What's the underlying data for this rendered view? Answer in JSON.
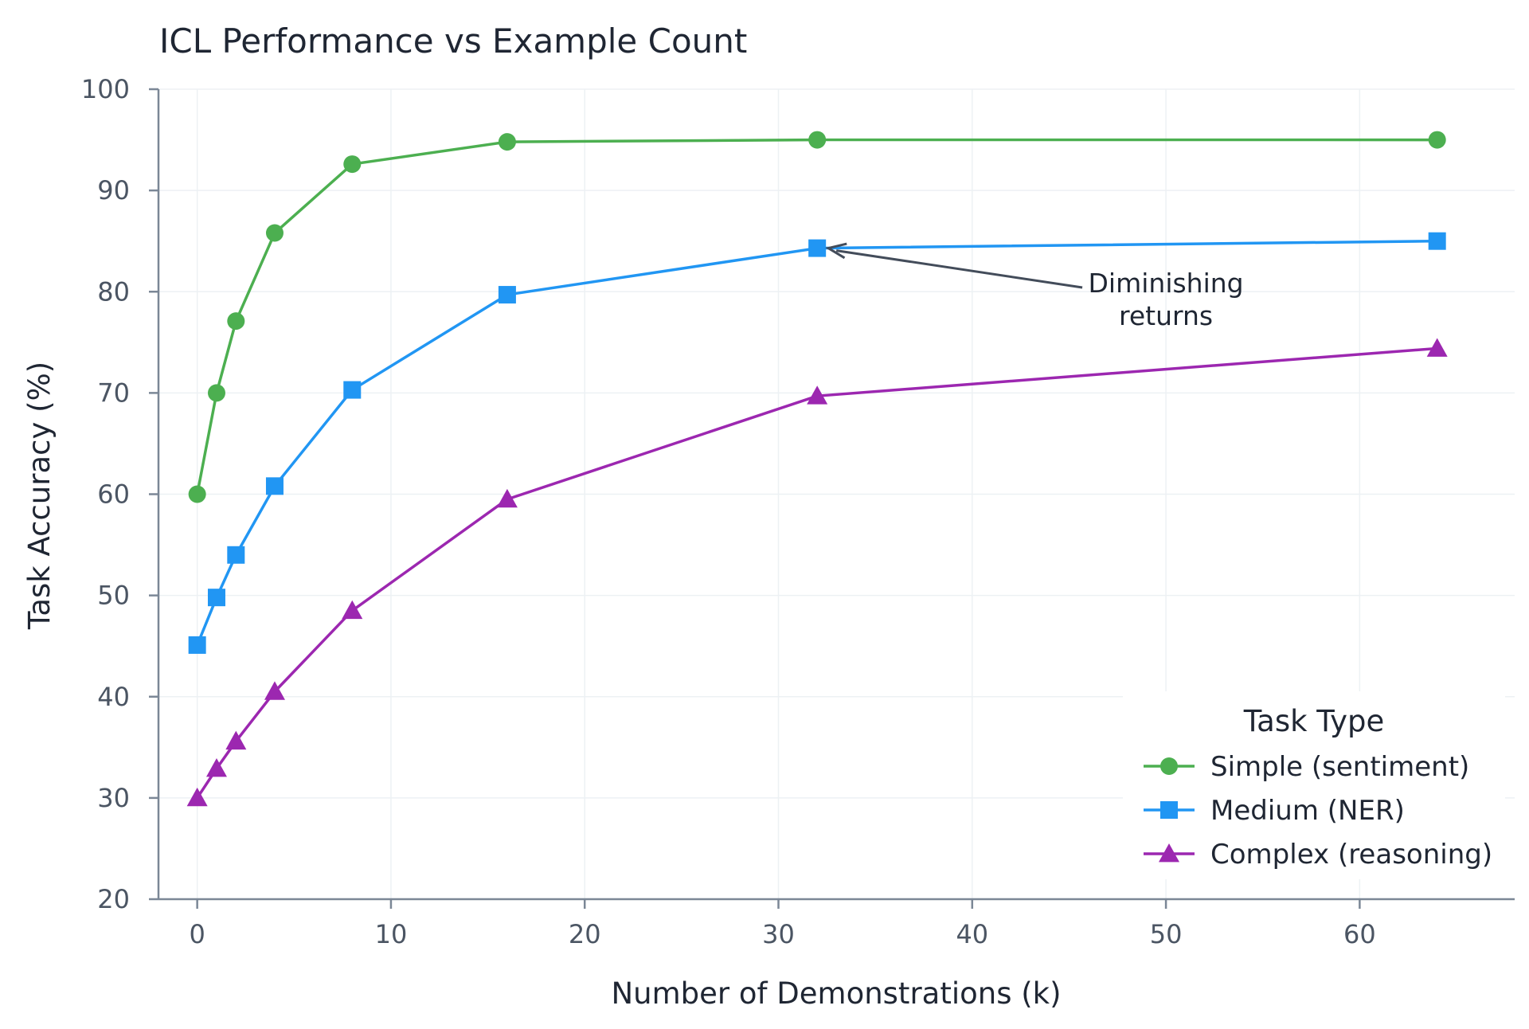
{
  "chart_data": {
    "type": "line",
    "title": "ICL Performance vs Example Count",
    "xlabel": "Number of Demonstrations (k)",
    "ylabel": "Task Accuracy (%)",
    "xlim": [
      -2,
      68
    ],
    "ylim": [
      20,
      100
    ],
    "xticks": [
      0,
      10,
      20,
      30,
      40,
      50,
      60
    ],
    "yticks": [
      20,
      30,
      40,
      50,
      60,
      70,
      80,
      90,
      100
    ],
    "grid": true,
    "legend": {
      "title": "Task Type",
      "placement": "bottom-right"
    },
    "series": [
      {
        "name": "Simple (sentiment)",
        "color": "#4caf50",
        "marker": "circle",
        "x": [
          0,
          1,
          2,
          4,
          8,
          16,
          32,
          64
        ],
        "y": [
          60.0,
          70.0,
          77.1,
          85.8,
          92.6,
          94.8,
          95.0,
          95.0
        ]
      },
      {
        "name": "Medium (NER)",
        "color": "#2196f3",
        "marker": "square",
        "x": [
          0,
          1,
          2,
          4,
          8,
          16,
          32,
          64
        ],
        "y": [
          45.1,
          49.8,
          54.0,
          60.8,
          70.3,
          79.7,
          84.3,
          85.0
        ]
      },
      {
        "name": "Complex (reasoning)",
        "color": "#9c27b0",
        "marker": "triangle",
        "x": [
          0,
          1,
          2,
          4,
          8,
          16,
          32,
          64
        ],
        "y": [
          30.0,
          32.9,
          35.6,
          40.5,
          48.5,
          59.5,
          69.7,
          74.4
        ]
      }
    ],
    "annotations": [
      {
        "text_lines": [
          "Diminishing",
          "returns"
        ],
        "point": [
          32,
          84.3
        ],
        "text_at": [
          50,
          79.0
        ],
        "arrow_color": "#434c5a"
      }
    ]
  }
}
